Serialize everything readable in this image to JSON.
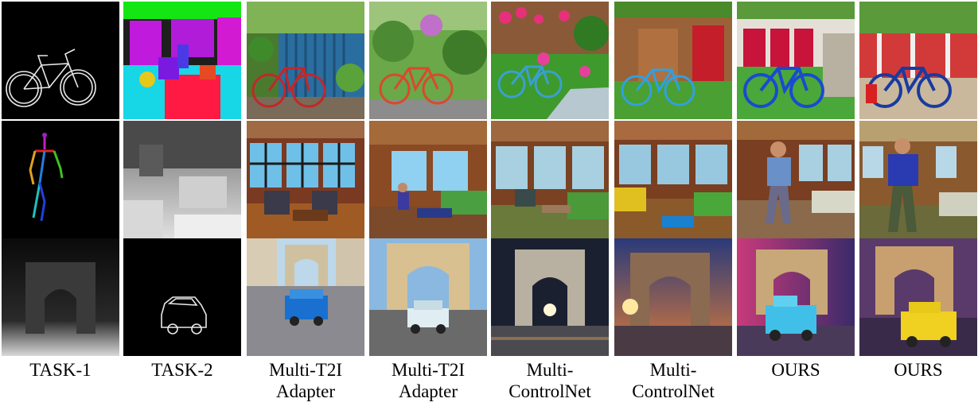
{
  "columns": [
    {
      "line1": "TASK-1",
      "line2": ""
    },
    {
      "line1": "TASK-2",
      "line2": ""
    },
    {
      "line1": "Multi-T2I",
      "line2": "Adapter"
    },
    {
      "line1": "Multi-T2I",
      "line2": "Adapter"
    },
    {
      "line1": "Multi-",
      "line2": "ControlNet"
    },
    {
      "line1": "Multi-",
      "line2": "ControlNet"
    },
    {
      "line1": "OURS",
      "line2": ""
    },
    {
      "line1": "OURS",
      "line2": ""
    }
  ],
  "rows": [
    {
      "tiles": [
        "bicycle-sketch-condition",
        "segmentation-condition",
        "bicycle-garden-fence",
        "bicycle-garden-path",
        "bicycle-flower-garden",
        "bicycle-red-cabin",
        "bicycle-blue-red-wall",
        "bicycle-blue-hedge"
      ]
    },
    {
      "tiles": [
        "pose-skeleton-condition",
        "depth-living-room-condition",
        "living-room-windows",
        "living-room-man-seated",
        "living-room-sofas",
        "living-room-yellow-sofa",
        "man-walking-living-room",
        "man-blue-jacket-living-room"
      ]
    },
    {
      "tiles": [
        "arch-depth-condition",
        "car-sketch-condition",
        "arch-blue-car-day",
        "arch-white-car",
        "arch-night",
        "arch-sunset",
        "arch-cyan-truck",
        "arch-yellow-taxi"
      ]
    }
  ]
}
